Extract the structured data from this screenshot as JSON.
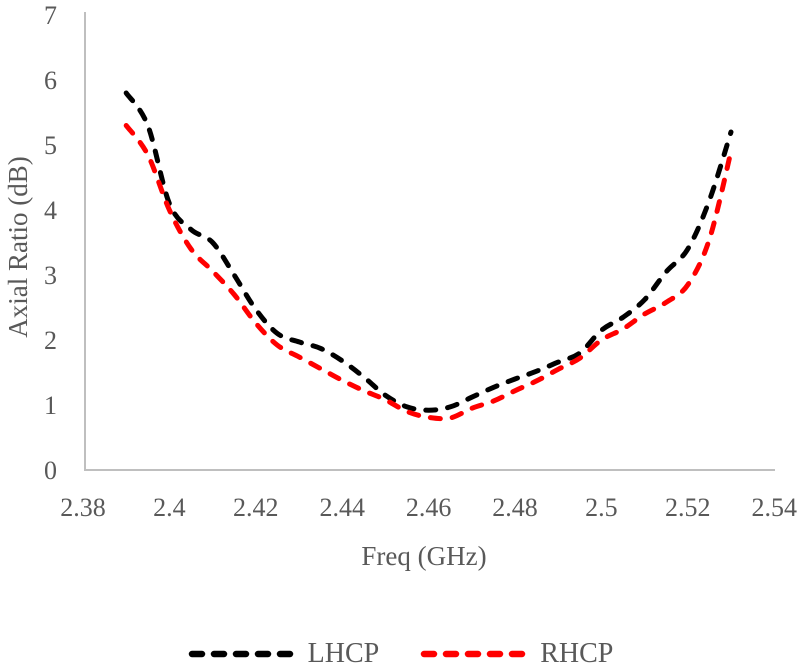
{
  "chart_data": {
    "type": "line",
    "title": "",
    "xlabel": "Freq (GHz)",
    "ylabel": "Axial Ratio (dB)",
    "xlim": [
      2.38,
      2.54
    ],
    "ylim": [
      0,
      7
    ],
    "x_ticks": [
      "2.38",
      "2.4",
      "2.42",
      "2.44",
      "2.46",
      "2.48",
      "2.5",
      "2.52",
      "2.54"
    ],
    "y_ticks": [
      "0",
      "1",
      "2",
      "3",
      "4",
      "5",
      "6",
      "7"
    ],
    "grid": false,
    "legend_position": "bottom",
    "line_style": "dashed",
    "axis_color": "#BFBFBF",
    "text_color": "#595959",
    "x": [
      2.39,
      2.395,
      2.4,
      2.405,
      2.41,
      2.415,
      2.42,
      2.425,
      2.43,
      2.435,
      2.44,
      2.445,
      2.45,
      2.455,
      2.46,
      2.465,
      2.47,
      2.475,
      2.48,
      2.485,
      2.49,
      2.495,
      2.5,
      2.505,
      2.51,
      2.515,
      2.52,
      2.525,
      2.53
    ],
    "series": [
      {
        "name": "LHCP",
        "color": "#000000",
        "values": [
          5.8,
          5.3,
          4.1,
          3.7,
          3.5,
          3.0,
          2.47,
          2.1,
          1.97,
          1.87,
          1.68,
          1.43,
          1.15,
          0.97,
          0.92,
          0.97,
          1.12,
          1.27,
          1.4,
          1.52,
          1.66,
          1.8,
          2.15,
          2.35,
          2.62,
          3.05,
          3.4,
          4.15,
          5.2
        ]
      },
      {
        "name": "RHCP",
        "color": "#FF0000",
        "values": [
          5.3,
          4.85,
          4.0,
          3.4,
          3.06,
          2.7,
          2.26,
          1.92,
          1.74,
          1.56,
          1.38,
          1.22,
          1.08,
          0.9,
          0.81,
          0.8,
          0.95,
          1.06,
          1.22,
          1.37,
          1.55,
          1.72,
          2.0,
          2.17,
          2.4,
          2.58,
          2.85,
          3.55,
          4.9
        ]
      }
    ]
  }
}
